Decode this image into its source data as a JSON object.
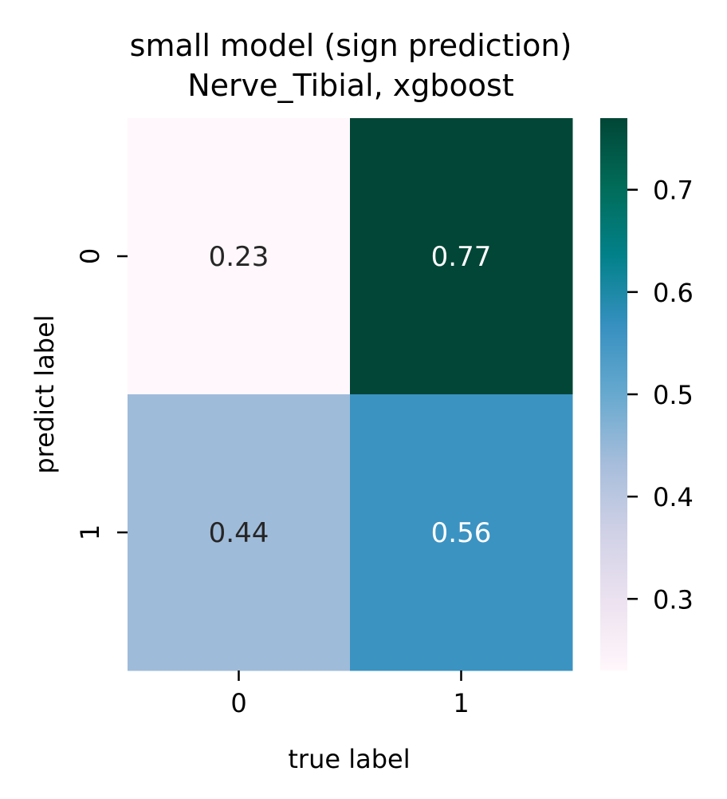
{
  "chart_data": {
    "type": "heatmap",
    "title": "small model (sign prediction)",
    "subtitle": "Nerve_Tibial, xgboost",
    "xlabel": "true label",
    "ylabel": "predict label",
    "x_categories": [
      "0",
      "1"
    ],
    "y_categories": [
      "0",
      "1"
    ],
    "values": [
      [
        0.23,
        0.77
      ],
      [
        0.44,
        0.56
      ]
    ],
    "cell_labels": [
      [
        "0.23",
        "0.77"
      ],
      [
        "0.44",
        "0.56"
      ]
    ],
    "colorbar": {
      "range": [
        0.23,
        0.77
      ],
      "ticks": [
        0.3,
        0.4,
        0.5,
        0.6,
        0.7
      ],
      "tick_labels": [
        "0.3",
        "0.4",
        "0.5",
        "0.6",
        "0.7"
      ],
      "colormap": "PuBuGn",
      "colors": [
        "#fff7fb",
        "#ece2f0",
        "#d0d1e6",
        "#a6bddb",
        "#67a9cf",
        "#3690c0",
        "#02818a",
        "#016c59",
        "#014636"
      ]
    }
  }
}
